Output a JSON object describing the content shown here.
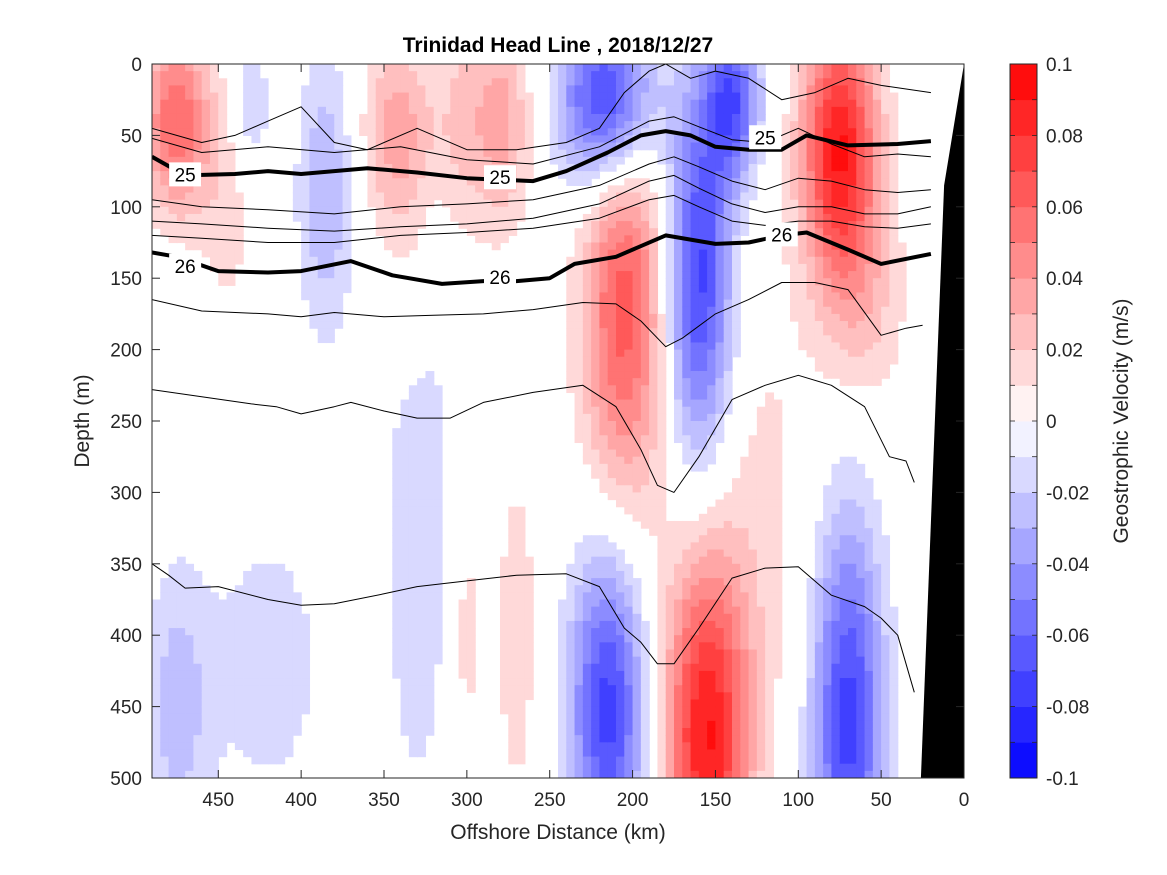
{
  "chart_data": {
    "type": "heatmap",
    "title": "Trinidad Head Line , 2018/12/27",
    "xlabel": "Offshore Distance (km)",
    "ylabel": "Depth (m)",
    "xlim": [
      490,
      0
    ],
    "ylim": [
      0,
      500
    ],
    "x_ticks": [
      450,
      400,
      350,
      300,
      250,
      200,
      150,
      100,
      50,
      0
    ],
    "y_ticks": [
      0,
      50,
      100,
      150,
      200,
      250,
      300,
      350,
      400,
      450,
      500
    ],
    "colorbar": {
      "label": "Geostrophic Velocity (m/s)",
      "range": [
        -0.1,
        0.1
      ],
      "levels": [
        -0.1,
        -0.09,
        -0.08,
        -0.07,
        -0.06,
        -0.05,
        -0.04,
        -0.03,
        -0.02,
        -0.01,
        0,
        0.01,
        0.02,
        0.03,
        0.04,
        0.05,
        0.06,
        0.07,
        0.08,
        0.09,
        0.1
      ],
      "tick_labels": [
        "0.1",
        "0.08",
        "0.06",
        "0.04",
        "0.02",
        "0",
        "-0.02",
        "-0.04",
        "-0.06",
        "-0.08",
        "-0.1"
      ],
      "colormap": "blue-white-red",
      "negative_color": "#0000ff",
      "positive_color": "#ff0000"
    },
    "velocity_cores": [
      {
        "x": 475,
        "depth": 40,
        "value": 0.06,
        "sx": 14,
        "sy": 45
      },
      {
        "x": 445,
        "depth": 100,
        "value": 0.015,
        "sx": 12,
        "sy": 60
      },
      {
        "x": 430,
        "depth": 30,
        "value": -0.02,
        "sx": 8,
        "sy": 35
      },
      {
        "x": 385,
        "depth": 90,
        "value": -0.03,
        "sx": 12,
        "sy": 70
      },
      {
        "x": 340,
        "depth": 50,
        "value": 0.04,
        "sx": 16,
        "sy": 50
      },
      {
        "x": 335,
        "depth": 170,
        "value": 0.015,
        "sx": 10,
        "sy": 50
      },
      {
        "x": 305,
        "depth": 40,
        "value": 0.015,
        "sx": 10,
        "sy": 60
      },
      {
        "x": 280,
        "depth": 40,
        "value": 0.035,
        "sx": 14,
        "sy": 55
      },
      {
        "x": 215,
        "depth": 25,
        "value": -0.085,
        "sx": 20,
        "sy": 45
      },
      {
        "x": 205,
        "depth": 170,
        "value": 0.065,
        "sx": 18,
        "sy": 100
      },
      {
        "x": 160,
        "depth": 150,
        "value": -0.075,
        "sx": 14,
        "sy": 90
      },
      {
        "x": 140,
        "depth": 25,
        "value": -0.065,
        "sx": 12,
        "sy": 40
      },
      {
        "x": 75,
        "depth": 60,
        "value": 0.09,
        "sx": 16,
        "sy": 65
      },
      {
        "x": 60,
        "depth": 170,
        "value": 0.02,
        "sx": 18,
        "sy": 55
      },
      {
        "x": 475,
        "depth": 450,
        "value": -0.025,
        "sx": 14,
        "sy": 70
      },
      {
        "x": 420,
        "depth": 420,
        "value": -0.015,
        "sx": 28,
        "sy": 80
      },
      {
        "x": 330,
        "depth": 300,
        "value": -0.02,
        "sx": 14,
        "sy": 160
      },
      {
        "x": 300,
        "depth": 400,
        "value": 0.015,
        "sx": 6,
        "sy": 60
      },
      {
        "x": 270,
        "depth": 400,
        "value": 0.02,
        "sx": 8,
        "sy": 80
      },
      {
        "x": 215,
        "depth": 450,
        "value": -0.075,
        "sx": 16,
        "sy": 80
      },
      {
        "x": 155,
        "depth": 470,
        "value": 0.09,
        "sx": 18,
        "sy": 90
      },
      {
        "x": 120,
        "depth": 300,
        "value": 0.012,
        "sx": 22,
        "sy": 120
      },
      {
        "x": 70,
        "depth": 460,
        "value": -0.075,
        "sx": 15,
        "sy": 100
      }
    ],
    "isopycnals": [
      {
        "label": "25",
        "bold": true,
        "label_at": [
          [
            470,
            78
          ],
          [
            280,
            80
          ],
          [
            120,
            52
          ]
        ],
        "x": [
          490,
          470,
          440,
          420,
          400,
          360,
          330,
          300,
          280,
          260,
          240,
          215,
          195,
          180,
          165,
          150,
          130,
          110,
          95,
          70,
          40,
          20
        ],
        "y": [
          65,
          78,
          77,
          75,
          77,
          73,
          76,
          80,
          81,
          82,
          75,
          62,
          50,
          47,
          50,
          58,
          60,
          60,
          50,
          57,
          56,
          54
        ]
      },
      {
        "label": "26",
        "bold": true,
        "label_at": [
          [
            470,
            142
          ],
          [
            280,
            150
          ],
          [
            110,
            120
          ]
        ],
        "x": [
          490,
          475,
          450,
          420,
          400,
          370,
          345,
          315,
          290,
          270,
          250,
          235,
          210,
          180,
          150,
          130,
          110,
          95,
          70,
          50,
          20
        ],
        "y": [
          132,
          135,
          145,
          146,
          145,
          138,
          148,
          154,
          152,
          152,
          150,
          140,
          135,
          120,
          126,
          125,
          120,
          118,
          130,
          140,
          133
        ]
      },
      {
        "label": "",
        "bold": false,
        "x": [
          490,
          460,
          440,
          420,
          400,
          380,
          360,
          330,
          300,
          270,
          240,
          220,
          205,
          190,
          180,
          165,
          150,
          130,
          110,
          90,
          70,
          50,
          20
        ],
        "y": [
          45,
          55,
          50,
          40,
          30,
          55,
          60,
          45,
          60,
          60,
          55,
          45,
          20,
          5,
          0,
          10,
          5,
          10,
          25,
          20,
          10,
          15,
          20
        ]
      },
      {
        "label": "",
        "bold": false,
        "x": [
          490,
          460,
          420,
          380,
          340,
          300,
          260,
          220,
          190,
          175,
          160,
          140,
          120,
          100,
          80,
          60,
          40,
          20
        ],
        "y": [
          52,
          62,
          58,
          62,
          58,
          67,
          70,
          58,
          40,
          37,
          44,
          53,
          55,
          45,
          56,
          65,
          63,
          65
        ]
      },
      {
        "label": "",
        "bold": false,
        "x": [
          490,
          460,
          420,
          380,
          340,
          300,
          260,
          220,
          190,
          175,
          160,
          140,
          120,
          100,
          80,
          60,
          40,
          20
        ],
        "y": [
          95,
          100,
          102,
          105,
          100,
          98,
          95,
          85,
          70,
          65,
          72,
          82,
          88,
          80,
          82,
          88,
          90,
          88
        ]
      },
      {
        "label": "",
        "bold": false,
        "x": [
          490,
          460,
          420,
          380,
          340,
          300,
          260,
          220,
          190,
          175,
          160,
          140,
          120,
          100,
          80,
          60,
          40,
          20
        ],
        "y": [
          110,
          112,
          115,
          117,
          114,
          112,
          108,
          98,
          82,
          78,
          87,
          98,
          104,
          100,
          100,
          105,
          105,
          100
        ]
      },
      {
        "label": "",
        "bold": false,
        "x": [
          490,
          460,
          420,
          380,
          340,
          300,
          260,
          220,
          190,
          175,
          160,
          140,
          120,
          100,
          80,
          60,
          40,
          20
        ],
        "y": [
          120,
          122,
          125,
          125,
          120,
          118,
          115,
          108,
          95,
          92,
          100,
          110,
          113,
          110,
          110,
          114,
          115,
          112
        ]
      },
      {
        "label": "",
        "bold": false,
        "x": [
          490,
          460,
          420,
          400,
          380,
          350,
          320,
          290,
          260,
          230,
          210,
          195,
          180,
          170,
          150,
          130,
          110,
          90,
          70,
          50,
          35,
          25
        ],
        "y": [
          165,
          173,
          175,
          177,
          174,
          177,
          176,
          175,
          172,
          167,
          168,
          180,
          198,
          192,
          175,
          165,
          153,
          153,
          158,
          190,
          185,
          183
        ]
      },
      {
        "label": "",
        "bold": false,
        "x": [
          490,
          460,
          430,
          415,
          400,
          380,
          370,
          350,
          330,
          310,
          290,
          260,
          230,
          210,
          195,
          185,
          175,
          160,
          140,
          120,
          100,
          80,
          60,
          45,
          35,
          30
        ],
        "y": [
          228,
          233,
          238,
          240,
          245,
          240,
          237,
          243,
          248,
          248,
          237,
          230,
          225,
          240,
          270,
          295,
          300,
          275,
          235,
          225,
          218,
          225,
          240,
          275,
          278,
          293
        ]
      },
      {
        "label": "",
        "bold": false,
        "x": [
          490,
          480,
          470,
          450,
          420,
          400,
          380,
          350,
          330,
          300,
          270,
          240,
          220,
          205,
          195,
          185,
          175,
          160,
          140,
          120,
          100,
          80,
          60,
          50,
          40,
          30
        ],
        "y": [
          350,
          358,
          367,
          366,
          375,
          379,
          378,
          371,
          366,
          362,
          358,
          357,
          366,
          395,
          405,
          420,
          420,
          395,
          360,
          353,
          352,
          372,
          380,
          388,
          400,
          440
        ]
      }
    ],
    "seafloor_color": "#000000"
  }
}
